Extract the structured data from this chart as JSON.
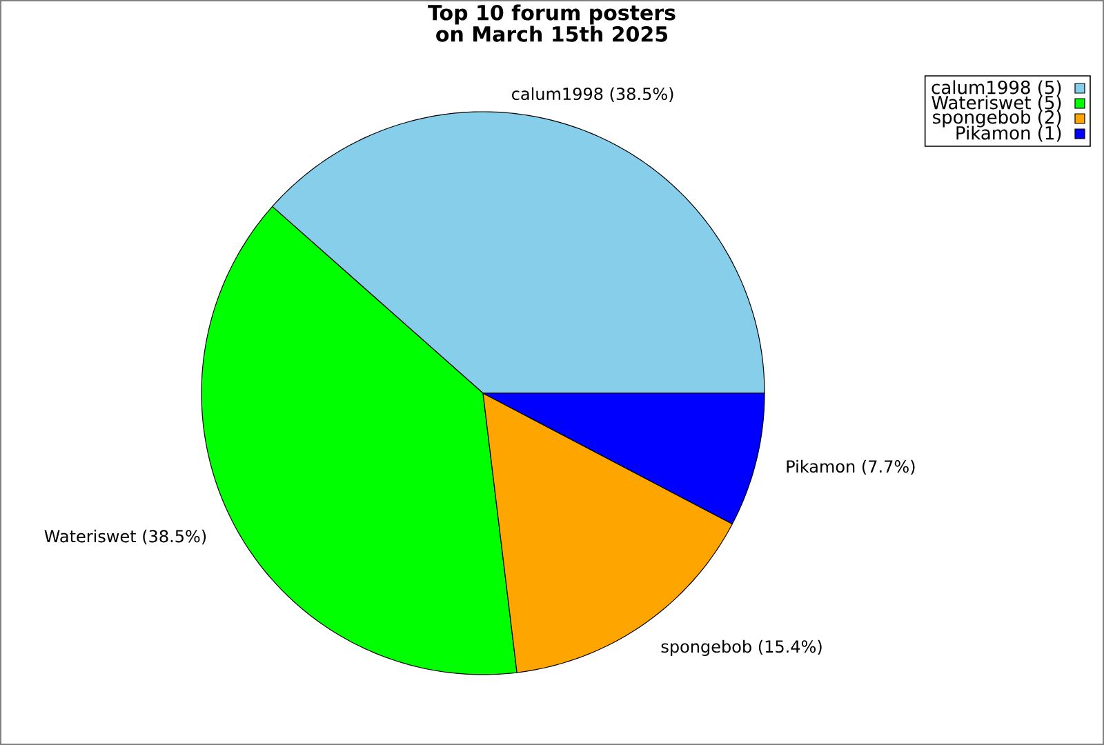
{
  "chart_data": {
    "type": "pie",
    "title": "Top 10 forum posters on March 15th 2025",
    "categories": [
      "calum1998 (5)",
      "Wateriswet (5)",
      "spongebob (2)",
      "Pikamon (1)"
    ],
    "values": [
      38.5,
      38.5,
      15.4,
      7.7
    ],
    "colors": [
      "#87ceeb",
      "#00ff00",
      "#ffa500",
      "#0000ff"
    ],
    "value_labels": [
      "calum1998 (38.5%)",
      "Wateriswet (38.5%)",
      "spongebob (15.4%)",
      "Pikamon (7.7%)"
    ],
    "legend": "top right"
  }
}
